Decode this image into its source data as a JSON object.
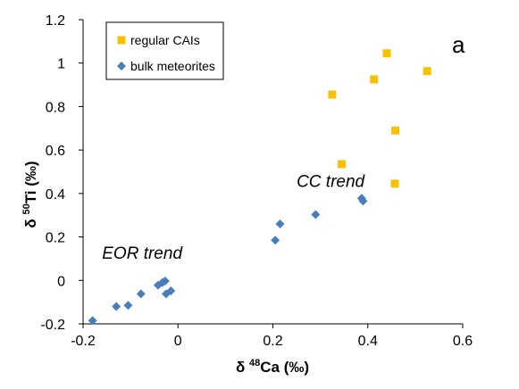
{
  "chart_data": {
    "type": "scatter",
    "panel_label": "a",
    "xlabel": {
      "prefix": "δ ",
      "sup": "48",
      "suffix": "Ca (‰)"
    },
    "ylabel": {
      "prefix": "δ ",
      "sup": "50",
      "suffix": "Ti (‰)"
    },
    "xlim": [
      -0.2,
      0.6
    ],
    "ylim": [
      -0.2,
      1.2
    ],
    "xticks": [
      -0.2,
      0,
      0.2,
      0.4,
      0.6
    ],
    "xtick_labels": [
      "-0.2",
      "0",
      "0.2",
      "0.4",
      "0.6"
    ],
    "yticks": [
      -0.2,
      0,
      0.2,
      0.4,
      0.6,
      0.8,
      1.0,
      1.2
    ],
    "ytick_labels": [
      "-0.2",
      "0",
      "0.2",
      "0.4",
      "0.6",
      "0.8",
      "1",
      "1.2"
    ],
    "grid": false,
    "legend_position": "top-left",
    "annotations": [
      {
        "text": "CC trend",
        "x": 0.25,
        "y": 0.43
      },
      {
        "text": "EOR trend",
        "x": -0.16,
        "y": 0.1
      }
    ],
    "series": [
      {
        "name": "regular CAIs",
        "marker": "square",
        "color": "#f5c200",
        "points": [
          [
            0.325,
            0.855
          ],
          [
            0.413,
            0.925
          ],
          [
            0.44,
            1.045
          ],
          [
            0.525,
            0.963
          ],
          [
            0.458,
            0.69
          ],
          [
            0.345,
            0.535
          ],
          [
            0.457,
            0.445
          ]
        ]
      },
      {
        "name": "bulk meteorites",
        "marker": "diamond",
        "color": "#4a7ebb",
        "points": [
          [
            -0.18,
            -0.185
          ],
          [
            -0.13,
            -0.12
          ],
          [
            -0.105,
            -0.115
          ],
          [
            -0.078,
            -0.062
          ],
          [
            -0.042,
            -0.022
          ],
          [
            -0.033,
            -0.01
          ],
          [
            -0.027,
            -0.003
          ],
          [
            -0.025,
            -0.062
          ],
          [
            -0.015,
            -0.048
          ],
          [
            0.205,
            0.185
          ],
          [
            0.215,
            0.26
          ],
          [
            0.29,
            0.303
          ],
          [
            0.387,
            0.378
          ],
          [
            0.39,
            0.365
          ]
        ]
      }
    ]
  }
}
